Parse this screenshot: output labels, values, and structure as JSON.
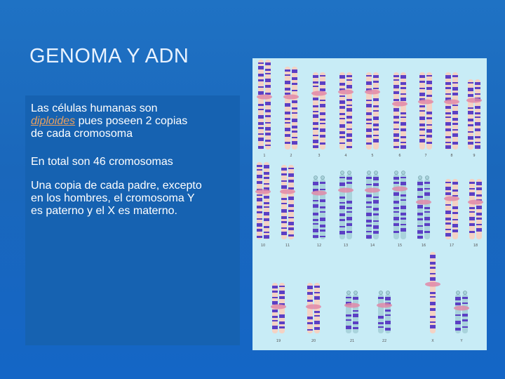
{
  "slide": {
    "title": "GENOMA Y ADN",
    "paragraph1": {
      "line1": "Las células humanas son",
      "emphasis": "diploides",
      "line2_rest": " pues poseen 2 copias",
      "line3": "de cada cromosoma"
    },
    "paragraph2": "En total son 46 cromosomas",
    "paragraph3": {
      "line1": "Una copia de cada padre, excepto",
      "line2": "en los hombres, el cromosoma Y",
      "line3": "es paterno y el X es materno."
    }
  },
  "karyotype": {
    "colors": {
      "background": "#c8ecf6",
      "dark_band": "#5b3fc4",
      "light_band": "#f4d2c4",
      "centromere": "#e08aa8",
      "pale": "#a9d3dc"
    },
    "rows": [
      {
        "labels": [
          "1",
          "2",
          "3",
          "4",
          "5",
          "6",
          "7",
          "8",
          "9"
        ]
      },
      {
        "labels": [
          "10",
          "11",
          "12",
          "13",
          "14",
          "15",
          "16",
          "17",
          "18"
        ]
      },
      {
        "labels": [
          "19",
          "20",
          "21",
          "22",
          "X",
          "Y"
        ]
      }
    ]
  }
}
